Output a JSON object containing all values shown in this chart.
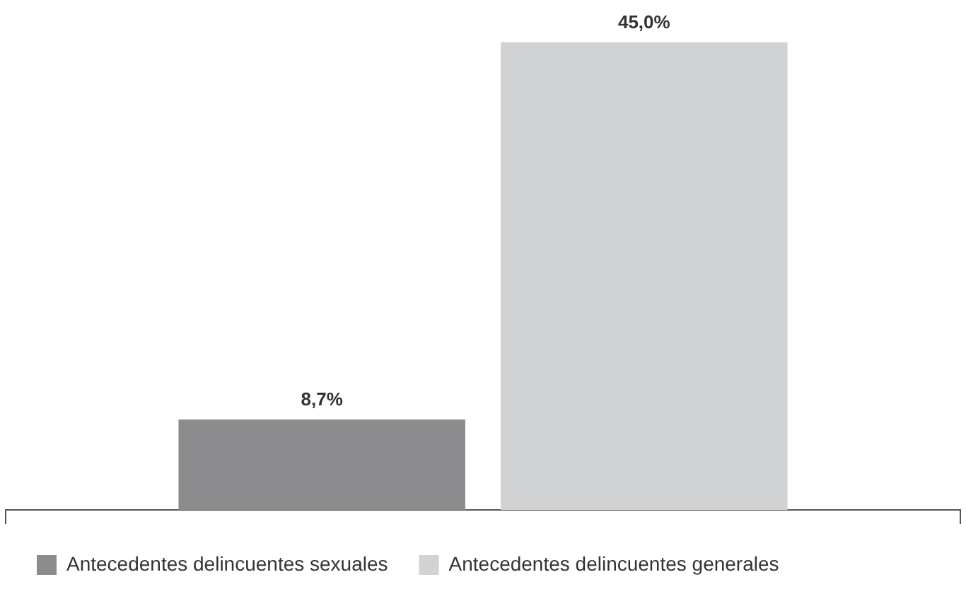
{
  "chart_data": {
    "type": "bar",
    "categories": [
      null
    ],
    "series": [
      {
        "name": "Antecedentes delincuentes sexuales",
        "color": "#8c8c8e",
        "values": [
          8.7
        ],
        "value_labels": [
          "8,7%"
        ]
      },
      {
        "name": "Antecedentes delincuentes generales",
        "color": "#d1d2d4",
        "values": [
          45.0
        ],
        "value_labels": [
          "45,0%"
        ]
      }
    ],
    "legend": "bottom"
  }
}
